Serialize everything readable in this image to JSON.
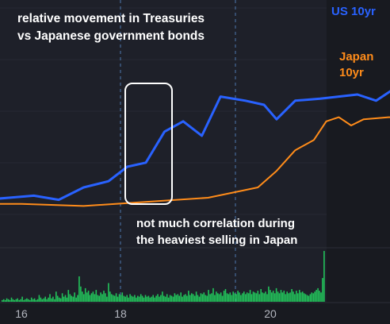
{
  "chart_data": {
    "type": "line",
    "title_lines": [
      "relative movement in Treasuries",
      "vs Japanese government bonds"
    ],
    "annotation_lines": [
      "not much correlation during",
      "the heaviest selling in Japan"
    ],
    "x_ticks": [
      "16",
      "18",
      "20"
    ],
    "series": [
      {
        "name": "US 10yr",
        "color": "#2962ff",
        "points": [
          [
            15.0,
            0.03
          ],
          [
            15.3,
            0.0
          ],
          [
            15.5,
            0.02
          ],
          [
            15.7,
            0.04
          ],
          [
            15.9,
            0.05
          ],
          [
            16.1,
            0.06
          ],
          [
            16.3,
            0.04
          ],
          [
            16.5,
            0.1
          ],
          [
            16.7,
            0.13
          ],
          [
            16.85,
            0.2
          ],
          [
            17.0,
            0.22
          ],
          [
            17.15,
            0.37
          ],
          [
            17.3,
            0.42
          ],
          [
            17.45,
            0.35
          ],
          [
            17.6,
            0.54
          ],
          [
            17.8,
            0.52
          ],
          [
            17.95,
            0.5
          ],
          [
            18.05,
            0.43
          ],
          [
            18.2,
            0.52
          ],
          [
            18.4,
            0.53
          ],
          [
            18.55,
            0.54
          ],
          [
            18.7,
            0.55
          ],
          [
            18.85,
            0.52
          ],
          [
            19.0,
            0.58
          ],
          [
            19.2,
            0.6
          ],
          [
            19.4,
            0.62
          ],
          [
            19.6,
            0.68
          ],
          [
            19.8,
            0.7
          ],
          [
            20.0,
            0.74
          ],
          [
            20.15,
            0.78
          ],
          [
            20.3,
            0.75
          ],
          [
            20.45,
            0.78
          ],
          [
            20.6,
            0.86
          ],
          [
            20.72,
            0.84
          ],
          [
            20.82,
            0.75
          ],
          [
            20.92,
            0.88
          ],
          [
            21.05,
            0.84
          ],
          [
            21.1,
            0.8
          ],
          [
            21.15,
            0.76
          ]
        ]
      },
      {
        "name": "Japan 10yr",
        "color": "#ff8c1a",
        "points": [
          [
            15.0,
            0.01
          ],
          [
            15.5,
            0.02
          ],
          [
            16.0,
            0.02
          ],
          [
            16.5,
            0.01
          ],
          [
            17.0,
            0.03
          ],
          [
            17.5,
            0.05
          ],
          [
            17.9,
            0.1
          ],
          [
            18.05,
            0.18
          ],
          [
            18.2,
            0.28
          ],
          [
            18.35,
            0.33
          ],
          [
            18.45,
            0.42
          ],
          [
            18.55,
            0.44
          ],
          [
            18.65,
            0.4
          ],
          [
            18.75,
            0.43
          ],
          [
            18.95,
            0.44
          ],
          [
            19.3,
            0.44
          ],
          [
            19.55,
            0.45
          ],
          [
            19.65,
            0.6
          ],
          [
            19.75,
            0.67
          ],
          [
            19.85,
            0.66
          ],
          [
            19.95,
            0.63
          ],
          [
            20.1,
            0.73
          ],
          [
            20.3,
            0.78
          ],
          [
            20.45,
            0.76
          ],
          [
            20.6,
            0.88
          ],
          [
            20.72,
            0.84
          ],
          [
            20.82,
            0.78
          ],
          [
            21.0,
            0.78
          ],
          [
            21.15,
            0.77
          ]
        ]
      }
    ],
    "volume_color": "#22c25a",
    "volume_bars": [
      2,
      3,
      2,
      4,
      3,
      2,
      5,
      3,
      2,
      3,
      4,
      2,
      3,
      6,
      2,
      3,
      4,
      3,
      2,
      5,
      3,
      4,
      2,
      3,
      8,
      5,
      3,
      4,
      6,
      3,
      5,
      9,
      4,
      6,
      3,
      12,
      7,
      5,
      4,
      10,
      6,
      8,
      5,
      14,
      9,
      7,
      6,
      11,
      5,
      8,
      30,
      18,
      12,
      9,
      16,
      11,
      13,
      8,
      10,
      12,
      9,
      14,
      8,
      7,
      11,
      9,
      13,
      10,
      6,
      22,
      12,
      9,
      8,
      7,
      10,
      6,
      9,
      8,
      11,
      7,
      6,
      8,
      5,
      9,
      7,
      6,
      8,
      5,
      7,
      6,
      9,
      7,
      5,
      8,
      6,
      7,
      5,
      6,
      8,
      5,
      7,
      9,
      6,
      8,
      12,
      7,
      6,
      9,
      5,
      8,
      7,
      6,
      10,
      8,
      9,
      7,
      11,
      6,
      8,
      9,
      7,
      13,
      8,
      10,
      9,
      7,
      12,
      8,
      6,
      10,
      9,
      11,
      8,
      7,
      14,
      9,
      10,
      16,
      8,
      12,
      10,
      9,
      11,
      7,
      13,
      15,
      10,
      9,
      11,
      8,
      12,
      10,
      9,
      13,
      11,
      8,
      10,
      12,
      9,
      11,
      10,
      14,
      9,
      12,
      11,
      10,
      13,
      9,
      15,
      11,
      10,
      12,
      9,
      18,
      14,
      11,
      13,
      10,
      16,
      12,
      10,
      14,
      11,
      13,
      9,
      12,
      10,
      11,
      15,
      12,
      9,
      13,
      10,
      14,
      11,
      12,
      10,
      9,
      8,
      7,
      9,
      11,
      10,
      12,
      14,
      16,
      13,
      11,
      28,
      60
    ]
  }
}
